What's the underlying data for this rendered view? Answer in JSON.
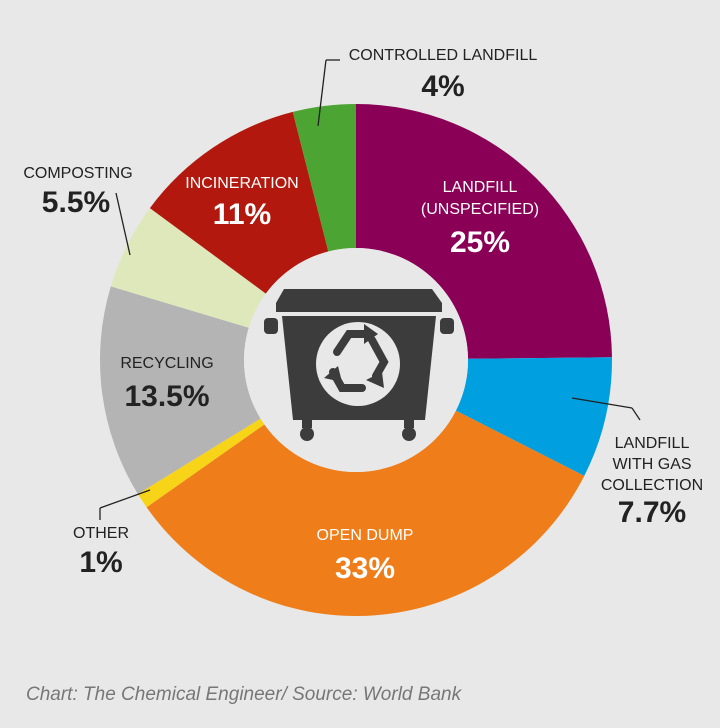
{
  "chart_data": {
    "type": "pie",
    "variant": "donut",
    "center_icon": "recycling-bin-icon",
    "slices": [
      {
        "label": "LANDFILL (UNSPECIFIED)",
        "value": 25,
        "value_label": "25%",
        "color": "#8a0056"
      },
      {
        "label": "LANDFILL WITH GAS COLLECTION",
        "value": 7.7,
        "value_label": "7.7%",
        "color": "#009fe0"
      },
      {
        "label": "OPEN DUMP",
        "value": 33,
        "value_label": "33%",
        "color": "#ee7d1a"
      },
      {
        "label": "OTHER",
        "value": 1,
        "value_label": "1%",
        "color": "#f7d417"
      },
      {
        "label": "RECYCLING",
        "value": 13.5,
        "value_label": "13.5%",
        "color": "#b4b4b4"
      },
      {
        "label": "COMPOSTING",
        "value": 5.5,
        "value_label": "5.5%",
        "color": "#dfe8bb"
      },
      {
        "label": "INCINERATION",
        "value": 11,
        "value_label": "11%",
        "color": "#b3180e"
      },
      {
        "label": "CONTROLLED LANDFILL",
        "value": 4,
        "value_label": "4%",
        "color": "#4ca532"
      }
    ]
  },
  "source": "Chart: The Chemical Engineer/ Source: World Bank"
}
